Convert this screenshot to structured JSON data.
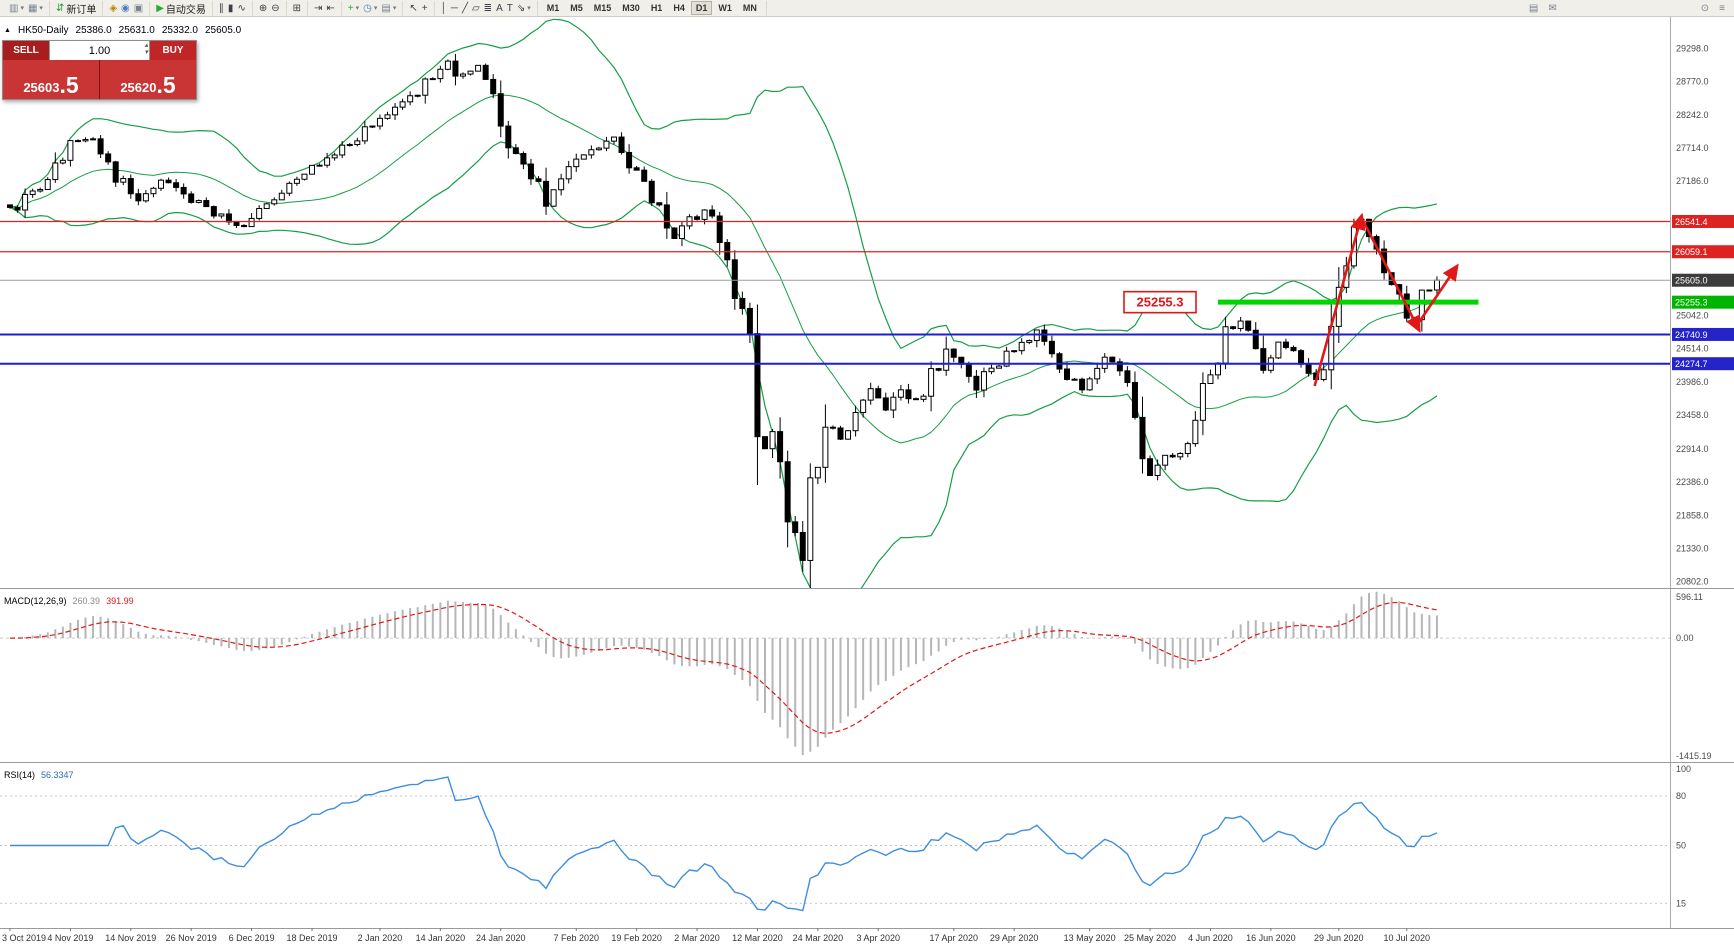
{
  "toolbar": {
    "groups": [
      {
        "items": [
          {
            "name": "new-chart-button",
            "glyph": "▥",
            "color": "#76818f",
            "caret": true
          },
          {
            "name": "chart-profiles-button",
            "glyph": "▦",
            "color": "#76818f",
            "caret": true
          }
        ]
      },
      {
        "items": [
          {
            "name": "new-order-button",
            "glyph": "⇵",
            "color": "#2e9e3f",
            "label": "新订单"
          }
        ]
      },
      {
        "items": [
          {
            "name": "market-watch-button",
            "glyph": "◈",
            "color": "#b8860b"
          },
          {
            "name": "data-window-button",
            "glyph": "◉",
            "color": "#4a7fbf"
          },
          {
            "name": "navigator-button",
            "glyph": "▣",
            "color": "#76818f"
          }
        ]
      },
      {
        "items": [
          {
            "name": "auto-trading-button",
            "glyph": "▶",
            "color": "#27ae27",
            "label": "自动交易"
          }
        ]
      },
      {
        "items": [
          {
            "name": "bar-chart-button",
            "glyph": "∥",
            "color": "#3a3f46"
          },
          {
            "name": "candlestick-chart-button",
            "glyph": "▮",
            "color": "#3a3f46"
          },
          {
            "name": "line-chart-button",
            "glyph": "∿",
            "color": "#3a3f46"
          }
        ]
      },
      {
        "items": [
          {
            "name": "zoom-in-button",
            "glyph": "⊕",
            "color": "#3a3f46"
          },
          {
            "name": "zoom-out-button",
            "glyph": "⊖",
            "color": "#3a3f46"
          }
        ]
      },
      {
        "items": [
          {
            "name": "tile-windows-button",
            "glyph": "⊞",
            "color": "#3a3f46"
          }
        ]
      },
      {
        "items": [
          {
            "name": "auto-scroll-button",
            "glyph": "⇥",
            "color": "#3a3f46"
          },
          {
            "name": "chart-shift-button",
            "glyph": "⇤",
            "color": "#3a3f46"
          }
        ]
      },
      {
        "items": [
          {
            "name": "indicators-button",
            "glyph": "+",
            "color": "#27ae27",
            "caret": true
          },
          {
            "name": "periods-button",
            "glyph": "◷",
            "color": "#4a7fbf",
            "caret": true
          },
          {
            "name": "templates-button",
            "glyph": "▤",
            "color": "#76818f",
            "caret": true
          }
        ]
      },
      {
        "items": [
          {
            "name": "cursor-button",
            "glyph": "↖",
            "color": "#3a3f46"
          },
          {
            "name": "crosshair-button",
            "glyph": "+",
            "color": "#3a3f46"
          }
        ]
      },
      {
        "items": [
          {
            "name": "vertical-line-button",
            "glyph": "│",
            "color": "#3a3f46"
          },
          {
            "name": "horizontal-line-button",
            "glyph": "─",
            "color": "#3a3f46"
          },
          {
            "name": "trendline-button",
            "glyph": "╱",
            "color": "#3a3f46"
          },
          {
            "name": "channel-button",
            "glyph": "▱",
            "color": "#3a3f46"
          },
          {
            "name": "fibonacci-button",
            "glyph": "≣",
            "color": "#3a3f46"
          },
          {
            "name": "text-button",
            "glyph": "A",
            "color": "#3a3f46"
          },
          {
            "name": "label-button",
            "glyph": "T",
            "color": "#3a3f46"
          },
          {
            "name": "shapes-button",
            "glyph": "⇘",
            "color": "#3a3f46",
            "caret": true
          }
        ]
      }
    ],
    "timeframes": {
      "items": [
        "M1",
        "M5",
        "M15",
        "M30",
        "H1",
        "H4",
        "D1",
        "W1",
        "MN"
      ],
      "active": "D1"
    },
    "right_icons": [
      {
        "name": "alerts-button",
        "glyph": "▤",
        "color": "#76818f"
      },
      {
        "name": "mailbox-button",
        "glyph": "✉",
        "color": "#76818f"
      }
    ],
    "far_right_icons": [
      {
        "name": "search-button",
        "glyph": "⊙",
        "color": "#76818f"
      },
      {
        "name": "options-button",
        "glyph": "≡",
        "color": "#76818f"
      }
    ]
  },
  "chart_header": {
    "marker_glyph": "▲",
    "symbol_title": "HK50-Daily",
    "open": "25386.0",
    "high": "25631.0",
    "low": "25332.0",
    "close": "25605.0"
  },
  "trade_panel": {
    "sell_label": "SELL",
    "buy_label": "BUY",
    "volume": "1.00",
    "spin_up": "▴",
    "spin_down": "▾",
    "sell_price_main": "25603",
    "sell_price_big": ".5",
    "buy_price_main": "25620",
    "buy_price_big": ".5"
  },
  "main_chart": {
    "price_axis_labels": [
      29298.0,
      28770.0,
      28242.0,
      27714.0,
      27186.0,
      25042.0,
      24514.0,
      23986.0,
      23458.0,
      22914.0,
      22386.0,
      21858.0,
      21330.0,
      20802.0
    ],
    "h_lines": [
      {
        "name": "resistance-line-1",
        "price": 26541.4,
        "label": "26541.4",
        "color": "#ee1c1c",
        "width": 1.2,
        "tag_bg": "#dd2222"
      },
      {
        "name": "resistance-line-2",
        "price": 26059.1,
        "label": "26059.1",
        "color": "#ee1c1c",
        "width": 1.2,
        "tag_bg": "#dd2222"
      },
      {
        "name": "current-price-line",
        "price": 25605.0,
        "label": "25605.0",
        "color": "#9b9b9b",
        "width": 1,
        "tag_bg": "#3c3c3c"
      },
      {
        "name": "support-zone-line",
        "price": 25255.3,
        "label": "25255.3",
        "color": "#00d500",
        "width": 5,
        "tag_bg": "#00b400",
        "from_bar": 160,
        "to_bar": 194.5
      },
      {
        "name": "support-line-1",
        "price": 24740.9,
        "label": "24740.9",
        "color": "#1d1dd8",
        "width": 2,
        "tag_bg": "#2424c8"
      },
      {
        "name": "support-line-2",
        "price": 24274.7,
        "label": "24274.7",
        "color": "#1d1dd8",
        "width": 2,
        "tag_bg": "#2424c8"
      }
    ],
    "callout": {
      "name": "price-callout",
      "text": "25255.3",
      "price": 25255.3
    },
    "arrows": [
      {
        "name": "rally-arrow",
        "from": [
          172.8,
          23920
        ],
        "to": [
          179.0,
          26620
        ]
      },
      {
        "name": "pullback-arrow",
        "from": [
          179.2,
          26560
        ],
        "to": [
          186.6,
          24820
        ]
      },
      {
        "name": "bounce-arrow",
        "from": [
          186.2,
          24860
        ],
        "to": [
          191.6,
          25820
        ]
      }
    ],
    "colors": {
      "candle_up": "#ffffff",
      "candle_down": "#000000",
      "candle_outline": "#000000",
      "bollinger": "#169e47",
      "drawing": "#e01818",
      "macd_hist": "#b6b6b6",
      "macd_signal": "#e01818",
      "rsi_line": "#3e8ede",
      "axis_text": "#4a4a4a"
    }
  },
  "chart_data": {
    "type": "candlestick",
    "symbol": "HK50",
    "timeframe": "Daily",
    "bar_count": 190,
    "price_range_top": 29800,
    "price_range_bottom": 20700,
    "close_anchors": [
      [
        0,
        26700
      ],
      [
        4,
        27100
      ],
      [
        8,
        27750
      ],
      [
        11,
        27880
      ],
      [
        14,
        27300
      ],
      [
        17,
        26950
      ],
      [
        20,
        27200
      ],
      [
        24,
        26900
      ],
      [
        28,
        26600
      ],
      [
        31,
        26400
      ],
      [
        34,
        26850
      ],
      [
        38,
        27200
      ],
      [
        42,
        27550
      ],
      [
        46,
        27900
      ],
      [
        49,
        28150
      ],
      [
        53,
        28500
      ],
      [
        56,
        28850
      ],
      [
        58,
        29050
      ],
      [
        60,
        28800
      ],
      [
        62,
        29150
      ],
      [
        64,
        28600
      ],
      [
        66,
        27900
      ],
      [
        68,
        27500
      ],
      [
        71,
        26900
      ],
      [
        74,
        27350
      ],
      [
        77,
        27700
      ],
      [
        80,
        27850
      ],
      [
        82,
        27500
      ],
      [
        84,
        27200
      ],
      [
        86,
        26700
      ],
      [
        88,
        26300
      ],
      [
        90,
        26550
      ],
      [
        92,
        26700
      ],
      [
        94,
        26300
      ],
      [
        96,
        25500
      ],
      [
        97,
        25100
      ],
      [
        98,
        24500
      ],
      [
        99,
        23600
      ],
      [
        100,
        23000
      ],
      [
        101,
        23400
      ],
      [
        102,
        22600
      ],
      [
        103,
        22000
      ],
      [
        104,
        21600
      ],
      [
        105,
        21150
      ],
      [
        106,
        22200
      ],
      [
        107,
        22900
      ],
      [
        108,
        23400
      ],
      [
        110,
        23100
      ],
      [
        112,
        23500
      ],
      [
        114,
        23800
      ],
      [
        116,
        23500
      ],
      [
        118,
        23900
      ],
      [
        120,
        23600
      ],
      [
        122,
        24100
      ],
      [
        124,
        24400
      ],
      [
        126,
        24200
      ],
      [
        128,
        23900
      ],
      [
        130,
        24200
      ],
      [
        133,
        24500
      ],
      [
        136,
        24750
      ],
      [
        138,
        24400
      ],
      [
        140,
        24100
      ],
      [
        142,
        23900
      ],
      [
        143,
        24100
      ],
      [
        145,
        24300
      ],
      [
        147,
        24200
      ],
      [
        148,
        23900
      ],
      [
        149,
        23300
      ],
      [
        150,
        22700
      ],
      [
        151,
        22550
      ],
      [
        153,
        22750
      ],
      [
        155,
        22900
      ],
      [
        157,
        23400
      ],
      [
        159,
        24100
      ],
      [
        161,
        24700
      ],
      [
        163,
        25050
      ],
      [
        165,
        24450
      ],
      [
        166,
        24200
      ],
      [
        168,
        24550
      ],
      [
        170,
        24500
      ],
      [
        171,
        24300
      ],
      [
        172,
        23950
      ],
      [
        173,
        24100
      ],
      [
        174,
        24300
      ],
      [
        175,
        24700
      ],
      [
        176,
        25200
      ],
      [
        177,
        25800
      ],
      [
        178,
        26300
      ],
      [
        179,
        26500
      ],
      [
        180,
        26300
      ],
      [
        181,
        26000
      ],
      [
        182,
        25800
      ],
      [
        183,
        25500
      ],
      [
        184,
        25300
      ],
      [
        185,
        25050
      ],
      [
        186,
        24980
      ],
      [
        187,
        25300
      ],
      [
        188,
        25500
      ],
      [
        189,
        25605
      ]
    ],
    "bollinger": {
      "period": 20,
      "deviation": 2
    },
    "x_axis_dates": [
      {
        "label": "3 Oct 2019",
        "bar": 0
      },
      {
        "label": "4 Nov 2019",
        "bar": 8
      },
      {
        "label": "14 Nov 2019",
        "bar": 16
      },
      {
        "label": "26 Nov 2019",
        "bar": 24
      },
      {
        "label": "6 Dec 2019",
        "bar": 32
      },
      {
        "label": "18 Dec 2019",
        "bar": 40
      },
      {
        "label": "2 Jan 2020",
        "bar": 49
      },
      {
        "label": "14 Jan 2020",
        "bar": 57
      },
      {
        "label": "24 Jan 2020",
        "bar": 65
      },
      {
        "label": "7 Feb 2020",
        "bar": 75
      },
      {
        "label": "19 Feb 2020",
        "bar": 83
      },
      {
        "label": "2 Mar 2020",
        "bar": 91
      },
      {
        "label": "12 Mar 2020",
        "bar": 99
      },
      {
        "label": "24 Mar 2020",
        "bar": 107
      },
      {
        "label": "3 Apr 2020",
        "bar": 115
      },
      {
        "label": "17 Apr 2020",
        "bar": 125
      },
      {
        "label": "29 Apr 2020",
        "bar": 133
      },
      {
        "label": "13 May 2020",
        "bar": 143
      },
      {
        "label": "25 May 2020",
        "bar": 151
      },
      {
        "label": "4 Jun 2020",
        "bar": 159
      },
      {
        "label": "16 Jun 2020",
        "bar": 167
      },
      {
        "label": "29 Jun 2020",
        "bar": 176
      },
      {
        "label": "10 Jul 2020",
        "bar": 185
      }
    ]
  },
  "macd": {
    "label": "MACD(12,26,9)",
    "value_main": "260.39",
    "value_signal": "391.99",
    "params": {
      "fast": 12,
      "slow": 26,
      "signal": 9
    },
    "axis": {
      "max": "596.11",
      "zero": "0.00",
      "min": "-1415.19"
    }
  },
  "rsi": {
    "label": "RSI(14)",
    "value": "56.3347",
    "period": 14,
    "levels": [
      80,
      50,
      15
    ],
    "axis_labels": [
      100,
      80,
      50,
      15
    ]
  }
}
